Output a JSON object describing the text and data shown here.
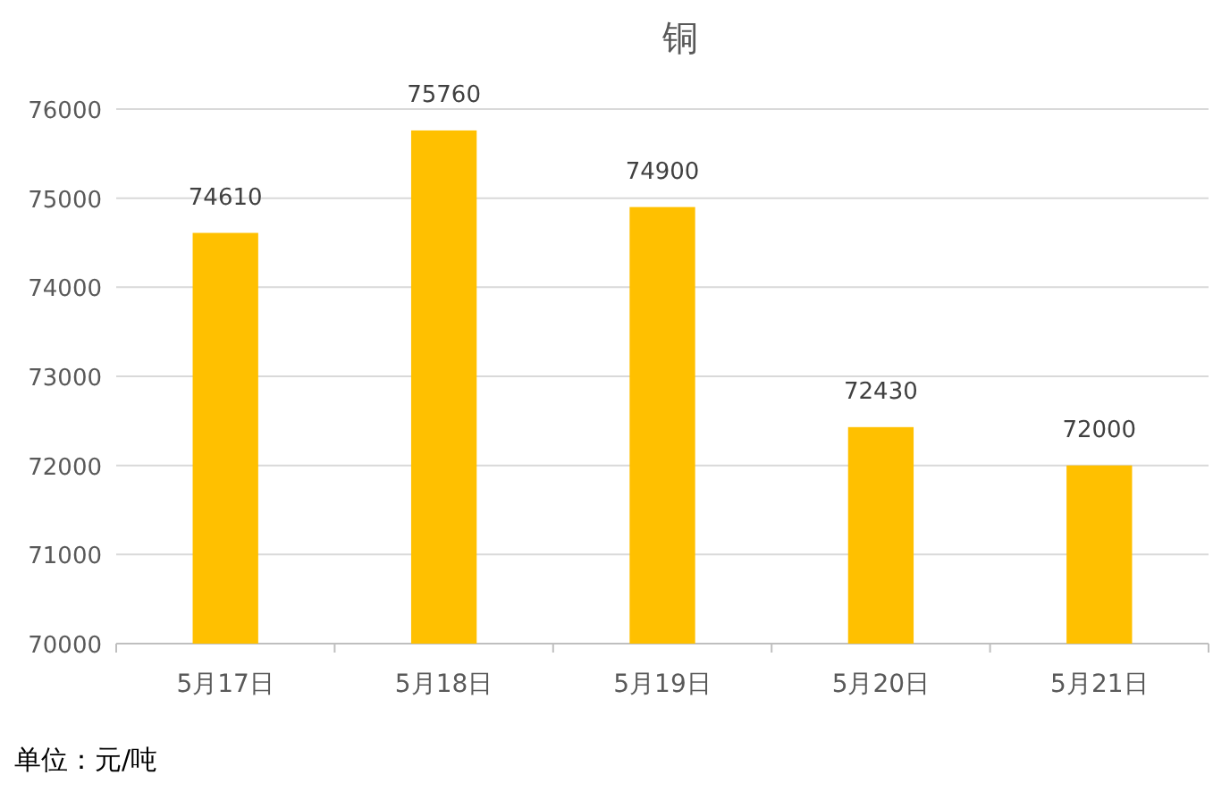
{
  "chart_data": {
    "type": "bar",
    "title": "铜",
    "categories": [
      "5月17日",
      "5月18日",
      "5月19日",
      "5月20日",
      "5月21日"
    ],
    "values": [
      74610,
      75760,
      74900,
      72430,
      72000
    ],
    "color": "#ffc000",
    "ylim": [
      70000,
      76000
    ],
    "yticks": [
      70000,
      71000,
      72000,
      73000,
      74000,
      75000,
      76000
    ],
    "grid": "y",
    "data_labels": true,
    "annotations": [
      "单位：元/吨"
    ]
  }
}
